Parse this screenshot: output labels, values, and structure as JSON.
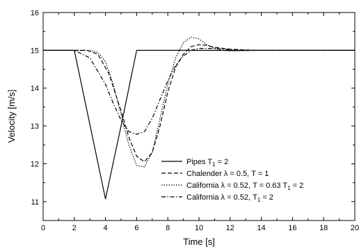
{
  "chart_data": {
    "type": "line",
    "title": "",
    "xlabel": "Time [s]",
    "ylabel": "Velocity [m/s]",
    "xlim": [
      0,
      20
    ],
    "ylim": [
      10.5,
      16
    ],
    "xticks": [
      "0",
      "2",
      "4",
      "6",
      "8",
      "10",
      "12",
      "14",
      "16",
      "18",
      "20"
    ],
    "yticks": [
      "11",
      "12",
      "13",
      "14",
      "15",
      "16"
    ],
    "grid": false,
    "legend_position": "bottom-right",
    "series": [
      {
        "name": "Pipes T",
        "name_sub": "1",
        "name_suffix": " = 2",
        "dash": "solid",
        "x": [
          0,
          2,
          4,
          5,
          6,
          20
        ],
        "y": [
          15,
          15,
          11.07,
          13.0,
          15,
          15
        ]
      },
      {
        "name": "Chalender λ = 0.5, T = 1",
        "dash": "dashed",
        "x": [
          0,
          2.8,
          3.5,
          4.2,
          5.0,
          5.5,
          6.0,
          6.5,
          7.0,
          7.5,
          8.0,
          8.5,
          9.0,
          9.5,
          10.0,
          10.5,
          11.0,
          12.0,
          13.0,
          14.0,
          16.0,
          20.0
        ],
        "y": [
          15,
          15,
          14.9,
          14.4,
          13.4,
          12.7,
          12.2,
          12.05,
          12.3,
          13.0,
          13.9,
          14.55,
          14.9,
          15.1,
          15.15,
          15.13,
          15.08,
          15.03,
          15.01,
          15.0,
          15.0,
          15.0
        ]
      },
      {
        "name": "California λ = 0.52, T = 0.63 T",
        "name_sub": "1",
        "name_suffix": " = 2",
        "dash": "dotted",
        "x": [
          0,
          3.0,
          3.5,
          4.0,
          4.5,
          5.0,
          5.5,
          6.0,
          6.5,
          7.0,
          7.5,
          8.0,
          8.5,
          9.0,
          9.5,
          10.0,
          10.5,
          11.0,
          11.5,
          12.0,
          13.0,
          14.0,
          16.0,
          20.0
        ],
        "y": [
          15,
          15,
          14.95,
          14.7,
          14.1,
          13.3,
          12.5,
          11.95,
          11.92,
          12.3,
          13.2,
          14.1,
          14.8,
          15.2,
          15.35,
          15.3,
          15.15,
          15.05,
          15.0,
          14.98,
          14.99,
          15.0,
          15.0,
          15.0
        ]
      },
      {
        "name": "California λ = 0.52, T",
        "name_sub": "1",
        "name_suffix": " = 2",
        "dash": "dashdot",
        "x": [
          0,
          2.0,
          3.0,
          4.0,
          4.5,
          5.0,
          5.5,
          6.0,
          6.5,
          7.0,
          7.5,
          8.0,
          8.5,
          9.0,
          9.5,
          10.0,
          11.0,
          12.0,
          13.0,
          14.0,
          16.0,
          20.0
        ],
        "y": [
          15,
          15,
          14.8,
          14.1,
          13.6,
          13.15,
          12.85,
          12.78,
          12.85,
          13.2,
          13.7,
          14.2,
          14.6,
          14.85,
          15.0,
          15.05,
          15.05,
          15.02,
          15.0,
          15.0,
          15.0,
          15.0
        ]
      }
    ]
  }
}
